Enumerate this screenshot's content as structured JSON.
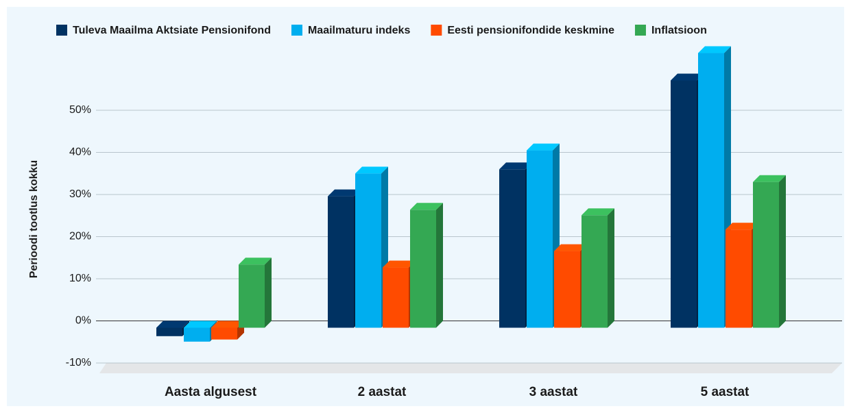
{
  "chart_data": {
    "type": "bar3d",
    "y_label": "Perioodi tootlus kokku",
    "categories": [
      "Aasta algusest",
      "2 aastat",
      "3 aastat",
      "5 aastat"
    ],
    "series": [
      {
        "name": "Tuleva Maailma Aktsiate Pensionifond",
        "color": "#003262",
        "values": [
          -2,
          31.2,
          37.6,
          58.7
        ]
      },
      {
        "name": "Maailmaturu indeks",
        "color": "#00aeef",
        "values": [
          -3.3,
          36.6,
          42.1,
          65.2
        ]
      },
      {
        "name": "Eesti pensionifondide keskmine",
        "color": "#ff4b00",
        "values": [
          -2.8,
          14.3,
          18.2,
          23.3
        ]
      },
      {
        "name": "Inflatsioon",
        "color": "#34a853",
        "values": [
          15,
          28,
          26.7,
          34.6
        ]
      }
    ],
    "ylim": [
      -10,
      70
    ],
    "yticks": [
      {
        "value": -10,
        "label": "-10%"
      },
      {
        "value": 0,
        "label": "0%"
      },
      {
        "value": 10,
        "label": "10%"
      },
      {
        "value": 20,
        "label": "20%"
      },
      {
        "value": 30,
        "label": "30%"
      },
      {
        "value": 40,
        "label": "40%"
      },
      {
        "value": 50,
        "label": "50%"
      }
    ],
    "grid": true
  }
}
